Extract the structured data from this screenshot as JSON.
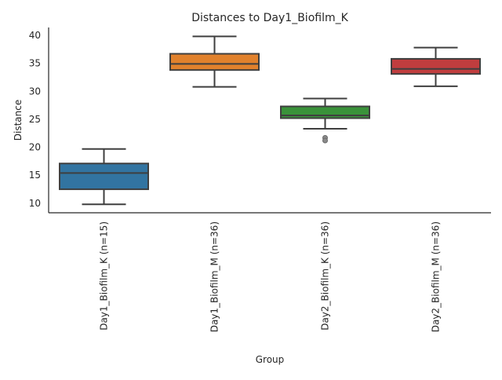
{
  "chart_data": {
    "type": "box",
    "title": "Distances to Day1_Biofilm_K",
    "xlabel": "Group",
    "ylabel": "Distance",
    "ylim": [
      8.3,
      41.4
    ],
    "yticks": [
      10,
      15,
      20,
      25,
      30,
      35,
      40
    ],
    "grid": false,
    "categories": [
      "Day1_Biofilm_K (n=15)",
      "Day1_Biofilm_M (n=36)",
      "Day2_Biofilm_K (n=36)",
      "Day2_Biofilm_M (n=36)"
    ],
    "colors": [
      "#3274a1",
      "#e1812c",
      "#3a923a",
      "#c03d3e"
    ],
    "boxes": [
      {
        "whisker_low": 9.8,
        "q1": 12.5,
        "median": 15.4,
        "q3": 17.1,
        "whisker_high": 19.7,
        "outliers": []
      },
      {
        "whisker_low": 30.8,
        "q1": 33.8,
        "median": 34.9,
        "q3": 36.7,
        "whisker_high": 39.8,
        "outliers": []
      },
      {
        "whisker_low": 23.3,
        "q1": 25.2,
        "median": 25.7,
        "q3": 27.3,
        "whisker_high": 28.7,
        "outliers": [
          21.7,
          21.2
        ]
      },
      {
        "whisker_low": 30.9,
        "q1": 33.1,
        "median": 34.0,
        "q3": 35.8,
        "whisker_high": 37.8,
        "outliers": []
      }
    ]
  }
}
